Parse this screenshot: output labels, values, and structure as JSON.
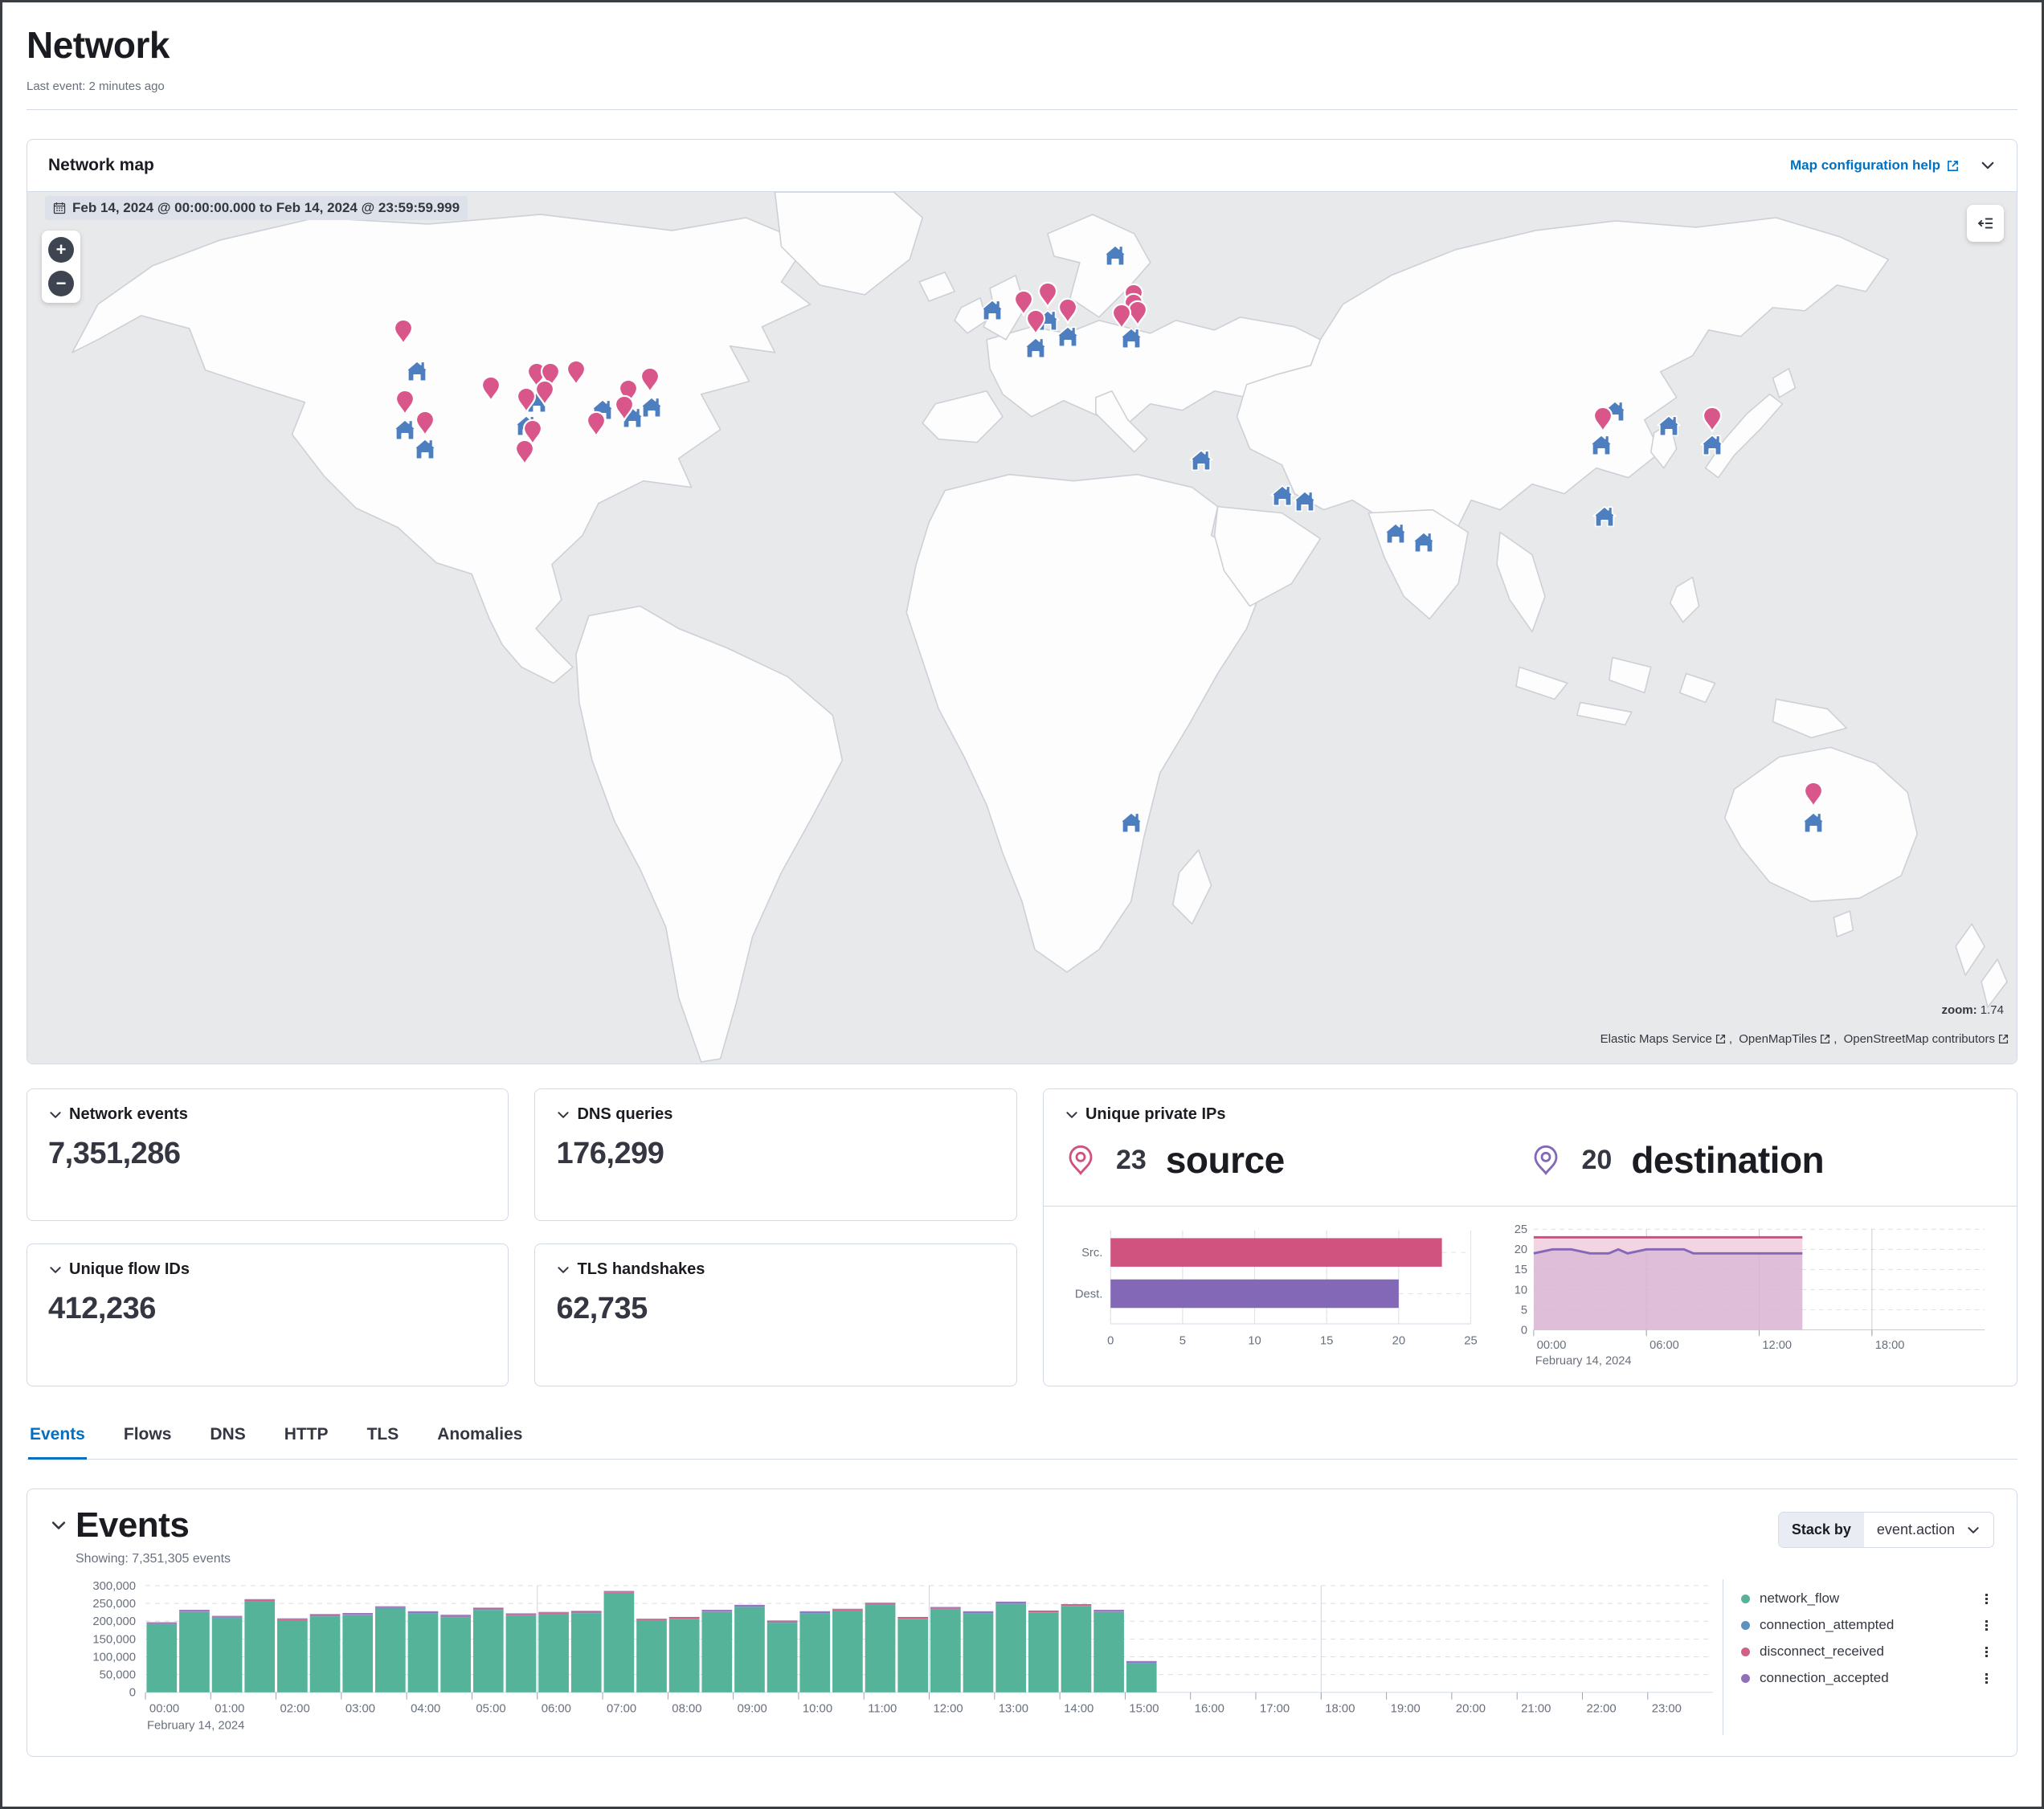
{
  "page": {
    "title": "Network",
    "last_event": "Last event: 2 minutes ago"
  },
  "colors": {
    "accent": "#0071c2",
    "green": "#54b399",
    "blue": "#6092c0",
    "pink": "#d36086",
    "purple": "#9170b8",
    "pin": "#d9568b",
    "house": "#4d7fc0",
    "src_bar": "#d0537f",
    "dest_bar": "#8468b8",
    "area_pink_line": "#d6477f",
    "area_purple_line": "#8468b8"
  },
  "map_panel": {
    "title": "Network map",
    "help_link": "Map configuration help",
    "date_badge": "Feb 14, 2024 @ 00:00:00.000 to Feb 14, 2024 @ 23:59:59.999",
    "zoom_label": "zoom:",
    "zoom_value": "1.74",
    "attribution": [
      "Elastic Maps Service",
      "OpenMapTiles",
      "OpenStreetMap contributors"
    ],
    "markers": [
      {
        "t": "pin",
        "x": 18.9,
        "y": 17.9
      },
      {
        "t": "house",
        "x": 19.6,
        "y": 20.7
      },
      {
        "t": "pin",
        "x": 19.0,
        "y": 26.0
      },
      {
        "t": "house",
        "x": 19.0,
        "y": 27.5
      },
      {
        "t": "pin",
        "x": 20.0,
        "y": 28.4
      },
      {
        "t": "house",
        "x": 20.0,
        "y": 29.7
      },
      {
        "t": "pin",
        "x": 23.3,
        "y": 24.4
      },
      {
        "t": "pin",
        "x": 25.6,
        "y": 22.9
      },
      {
        "t": "pin",
        "x": 26.3,
        "y": 22.9
      },
      {
        "t": "house",
        "x": 25.6,
        "y": 24.3
      },
      {
        "t": "pin",
        "x": 26.0,
        "y": 24.9
      },
      {
        "t": "pin",
        "x": 25.1,
        "y": 25.7
      },
      {
        "t": "house",
        "x": 25.1,
        "y": 27.0
      },
      {
        "t": "pin",
        "x": 27.6,
        "y": 22.6
      },
      {
        "t": "house",
        "x": 28.9,
        "y": 25.2
      },
      {
        "t": "pin",
        "x": 30.2,
        "y": 24.8
      },
      {
        "t": "house",
        "x": 30.4,
        "y": 26.1
      },
      {
        "t": "pin",
        "x": 31.3,
        "y": 23.4
      },
      {
        "t": "house",
        "x": 31.4,
        "y": 24.9
      },
      {
        "t": "pin",
        "x": 30.0,
        "y": 26.6
      },
      {
        "t": "pin",
        "x": 28.6,
        "y": 28.5
      },
      {
        "t": "pin",
        "x": 25.4,
        "y": 29.4
      },
      {
        "t": "pin",
        "x": 25.0,
        "y": 31.7
      },
      {
        "t": "house",
        "x": 48.5,
        "y": 13.7
      },
      {
        "t": "pin",
        "x": 50.1,
        "y": 14.6
      },
      {
        "t": "house",
        "x": 54.7,
        "y": 7.5
      },
      {
        "t": "pin",
        "x": 51.3,
        "y": 13.6
      },
      {
        "t": "house",
        "x": 51.3,
        "y": 14.9
      },
      {
        "t": "pin",
        "x": 50.7,
        "y": 16.8
      },
      {
        "t": "house",
        "x": 50.7,
        "y": 18.1
      },
      {
        "t": "pin",
        "x": 52.3,
        "y": 15.5
      },
      {
        "t": "house",
        "x": 52.3,
        "y": 16.8
      },
      {
        "t": "pin",
        "x": 55.6,
        "y": 13.8
      },
      {
        "t": "pin",
        "x": 55.6,
        "y": 14.9
      },
      {
        "t": "pin",
        "x": 55.8,
        "y": 15.8
      },
      {
        "t": "pin",
        "x": 55.0,
        "y": 16.1
      },
      {
        "t": "house",
        "x": 55.5,
        "y": 17.0
      },
      {
        "t": "house",
        "x": 79.8,
        "y": 25.3
      },
      {
        "t": "pin",
        "x": 79.2,
        "y": 27.9
      },
      {
        "t": "house",
        "x": 79.1,
        "y": 29.2
      },
      {
        "t": "house",
        "x": 82.5,
        "y": 27.0
      },
      {
        "t": "pin",
        "x": 84.7,
        "y": 27.9
      },
      {
        "t": "house",
        "x": 84.7,
        "y": 29.2
      },
      {
        "t": "house",
        "x": 79.3,
        "y": 37.4
      },
      {
        "t": "house",
        "x": 59.0,
        "y": 31.0
      },
      {
        "t": "house",
        "x": 63.1,
        "y": 35.0
      },
      {
        "t": "house",
        "x": 64.2,
        "y": 35.7
      },
      {
        "t": "house",
        "x": 68.8,
        "y": 39.4
      },
      {
        "t": "house",
        "x": 70.2,
        "y": 40.4
      },
      {
        "t": "house",
        "x": 55.5,
        "y": 72.5
      },
      {
        "t": "pin",
        "x": 89.8,
        "y": 71.0
      },
      {
        "t": "house",
        "x": 89.8,
        "y": 72.5
      }
    ]
  },
  "stats": [
    {
      "label": "Network events",
      "value": "7,351,286"
    },
    {
      "label": "DNS queries",
      "value": "176,299"
    },
    {
      "label": "Unique flow IDs",
      "value": "412,236"
    },
    {
      "label": "TLS handshakes",
      "value": "62,735"
    }
  ],
  "unique_ips": {
    "label": "Unique private IPs",
    "source": {
      "count": "23",
      "word": "source"
    },
    "destination": {
      "count": "20",
      "word": "destination"
    },
    "chart_data": [
      {
        "type": "bar",
        "categories": [
          "Src.",
          "Dest."
        ],
        "values": [
          23,
          20
        ],
        "xlim": [
          0,
          25
        ],
        "x_ticks": [
          0,
          5,
          10,
          15,
          20,
          25
        ]
      },
      {
        "type": "area",
        "ylim": [
          0,
          25
        ],
        "y_ticks": [
          0,
          5,
          10,
          15,
          20,
          25
        ],
        "x_domain_hours": [
          0,
          24
        ],
        "x_tick_labels": [
          "00:00",
          "06:00",
          "12:00",
          "18:00"
        ],
        "x_tick_hours": [
          0,
          6,
          12,
          18
        ],
        "gridline_hours": [
          6,
          12,
          18
        ],
        "date_label": "February 14, 2024",
        "series": [
          {
            "name": "source",
            "hours": [
              0,
              14.3
            ],
            "values": [
              23,
              23
            ]
          },
          {
            "name": "destination",
            "hours": [
              0,
              1,
              2,
              3,
              4,
              4.5,
              5,
              6,
              7,
              8,
              8.5,
              9,
              10,
              11,
              12,
              13,
              14,
              14.3
            ],
            "values": [
              19,
              20,
              20,
              19,
              19,
              20,
              19,
              20,
              20,
              20,
              19,
              19,
              19,
              19,
              19,
              19,
              19,
              19
            ]
          }
        ]
      }
    ]
  },
  "tabs": [
    {
      "label": "Events",
      "active": true
    },
    {
      "label": "Flows",
      "active": false
    },
    {
      "label": "DNS",
      "active": false
    },
    {
      "label": "HTTP",
      "active": false
    },
    {
      "label": "TLS",
      "active": false
    },
    {
      "label": "Anomalies",
      "active": false
    }
  ],
  "events_panel": {
    "title": "Events",
    "showing": "Showing: 7,351,305 events",
    "stack_by_label": "Stack by",
    "stack_by_value": "event.action",
    "legend": [
      {
        "label": "network_flow",
        "color_key": "green"
      },
      {
        "label": "connection_attempted",
        "color_key": "blue"
      },
      {
        "label": "disconnect_received",
        "color_key": "pink"
      },
      {
        "label": "connection_accepted",
        "color_key": "purple"
      }
    ],
    "chart_data": {
      "type": "bar",
      "stacked": true,
      "bucket_minutes": 30,
      "first_bucket": "00:00",
      "last_bucket": "15:00",
      "totals": [
        197000,
        232000,
        215000,
        262000,
        208000,
        220000,
        223000,
        242000,
        228000,
        218000,
        238000,
        222000,
        226000,
        229000,
        285000,
        207000,
        212000,
        232000,
        246000,
        202000,
        228000,
        235000,
        252000,
        212000,
        240000,
        228000,
        255000,
        230000,
        248000,
        232000,
        88000
      ],
      "cap_values": {
        "connection_attempted": 1500,
        "disconnect_received": 2500,
        "connection_accepted": 2500
      },
      "ylim": [
        0,
        300000
      ],
      "y_ticks": [
        0,
        50000,
        100000,
        150000,
        200000,
        250000,
        300000
      ],
      "x_hour_labels": [
        "00:00",
        "01:00",
        "02:00",
        "03:00",
        "04:00",
        "05:00",
        "06:00",
        "07:00",
        "08:00",
        "09:00",
        "10:00",
        "11:00",
        "12:00",
        "13:00",
        "14:00",
        "15:00",
        "16:00",
        "17:00",
        "18:00",
        "19:00",
        "20:00",
        "21:00",
        "22:00",
        "23:00"
      ],
      "gridline_hours": [
        6,
        12,
        18
      ],
      "date_label": "February 14, 2024"
    }
  }
}
